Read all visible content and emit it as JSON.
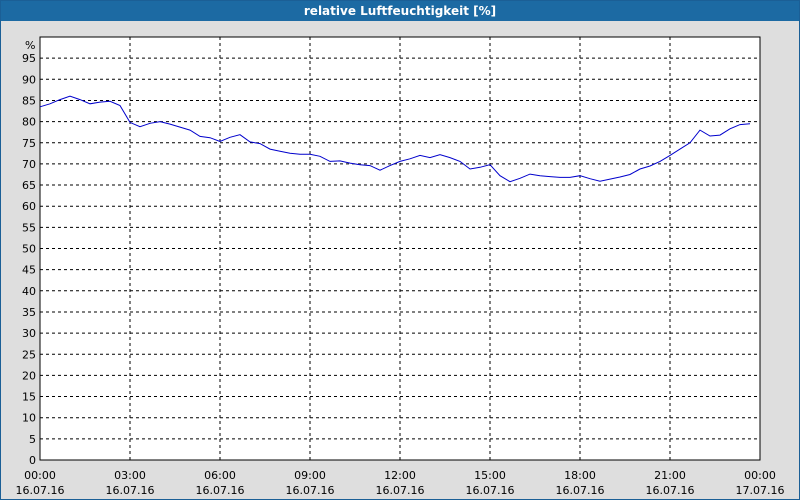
{
  "chart_data": {
    "type": "line",
    "title": "relative Luftfeuchtigkeit [%]",
    "ylabel": "%",
    "ylim": [
      0,
      100
    ],
    "yticks": [
      0,
      5,
      10,
      15,
      20,
      25,
      30,
      35,
      40,
      45,
      50,
      55,
      60,
      65,
      70,
      75,
      80,
      85,
      90,
      95
    ],
    "xlim": [
      "2016-07-16T00:00",
      "2016-07-17T00:00"
    ],
    "xticks": [
      {
        "time": "00:00",
        "date": "16.07.16"
      },
      {
        "time": "03:00",
        "date": "16.07.16"
      },
      {
        "time": "06:00",
        "date": "16.07.16"
      },
      {
        "time": "09:00",
        "date": "16.07.16"
      },
      {
        "time": "12:00",
        "date": "16.07.16"
      },
      {
        "time": "15:00",
        "date": "16.07.16"
      },
      {
        "time": "18:00",
        "date": "16.07.16"
      },
      {
        "time": "21:00",
        "date": "16.07.16"
      },
      {
        "time": "00:00",
        "date": "17.07.16"
      }
    ],
    "grid": true,
    "line_color": "#0000cc",
    "series": [
      {
        "x": [
          "2016-07-16T00:00",
          "2016-07-16T00:20",
          "2016-07-16T00:40",
          "2016-07-16T01:00",
          "2016-07-16T01:20",
          "2016-07-16T01:40",
          "2016-07-16T02:00",
          "2016-07-16T02:20",
          "2016-07-16T02:40",
          "2016-07-16T03:00",
          "2016-07-16T03:20",
          "2016-07-16T03:40",
          "2016-07-16T04:00",
          "2016-07-16T04:20",
          "2016-07-16T04:40",
          "2016-07-16T05:00",
          "2016-07-16T05:20",
          "2016-07-16T05:40",
          "2016-07-16T06:00",
          "2016-07-16T06:20",
          "2016-07-16T06:40",
          "2016-07-16T07:00",
          "2016-07-16T07:20",
          "2016-07-16T07:40",
          "2016-07-16T08:00",
          "2016-07-16T08:20",
          "2016-07-16T08:40",
          "2016-07-16T09:00",
          "2016-07-16T09:20",
          "2016-07-16T09:40",
          "2016-07-16T10:00",
          "2016-07-16T10:20",
          "2016-07-16T10:40",
          "2016-07-16T11:00",
          "2016-07-16T11:20",
          "2016-07-16T11:40",
          "2016-07-16T12:00",
          "2016-07-16T12:20",
          "2016-07-16T12:40",
          "2016-07-16T13:00",
          "2016-07-16T13:20",
          "2016-07-16T13:40",
          "2016-07-16T14:00",
          "2016-07-16T14:20",
          "2016-07-16T14:40",
          "2016-07-16T15:00",
          "2016-07-16T15:20",
          "2016-07-16T15:40",
          "2016-07-16T16:00",
          "2016-07-16T16:20",
          "2016-07-16T16:40",
          "2016-07-16T17:00",
          "2016-07-16T17:20",
          "2016-07-16T17:40",
          "2016-07-16T18:00",
          "2016-07-16T18:20",
          "2016-07-16T18:40",
          "2016-07-16T19:00",
          "2016-07-16T19:20",
          "2016-07-16T19:40",
          "2016-07-16T20:00",
          "2016-07-16T20:20",
          "2016-07-16T20:40",
          "2016-07-16T21:00",
          "2016-07-16T21:20",
          "2016-07-16T21:40",
          "2016-07-16T22:00",
          "2016-07-16T22:20",
          "2016-07-16T22:40",
          "2016-07-16T23:00",
          "2016-07-16T23:20",
          "2016-07-16T23:40"
        ],
        "y": [
          83.5,
          84.2,
          85.2,
          86.0,
          85.2,
          84.2,
          84.6,
          84.8,
          83.8,
          79.8,
          78.8,
          79.6,
          80.0,
          79.4,
          78.7,
          78.0,
          76.5,
          76.2,
          75.3,
          76.3,
          76.9,
          75.2,
          74.8,
          73.5,
          73.0,
          72.5,
          72.3,
          72.3,
          71.8,
          70.6,
          70.7,
          70.2,
          69.8,
          69.6,
          68.5,
          69.6,
          70.6,
          71.2,
          72.0,
          71.5,
          72.2,
          71.5,
          70.6,
          68.8,
          69.2,
          69.8,
          67.2,
          65.8,
          66.6,
          67.6,
          67.2,
          67.0,
          66.8,
          66.8,
          67.2,
          66.5,
          65.9,
          66.4,
          66.9,
          67.5,
          68.8,
          69.5,
          70.6,
          72.0,
          73.5,
          75.0,
          78.0,
          76.6,
          76.8,
          78.3,
          79.3,
          79.5
        ]
      }
    ]
  }
}
